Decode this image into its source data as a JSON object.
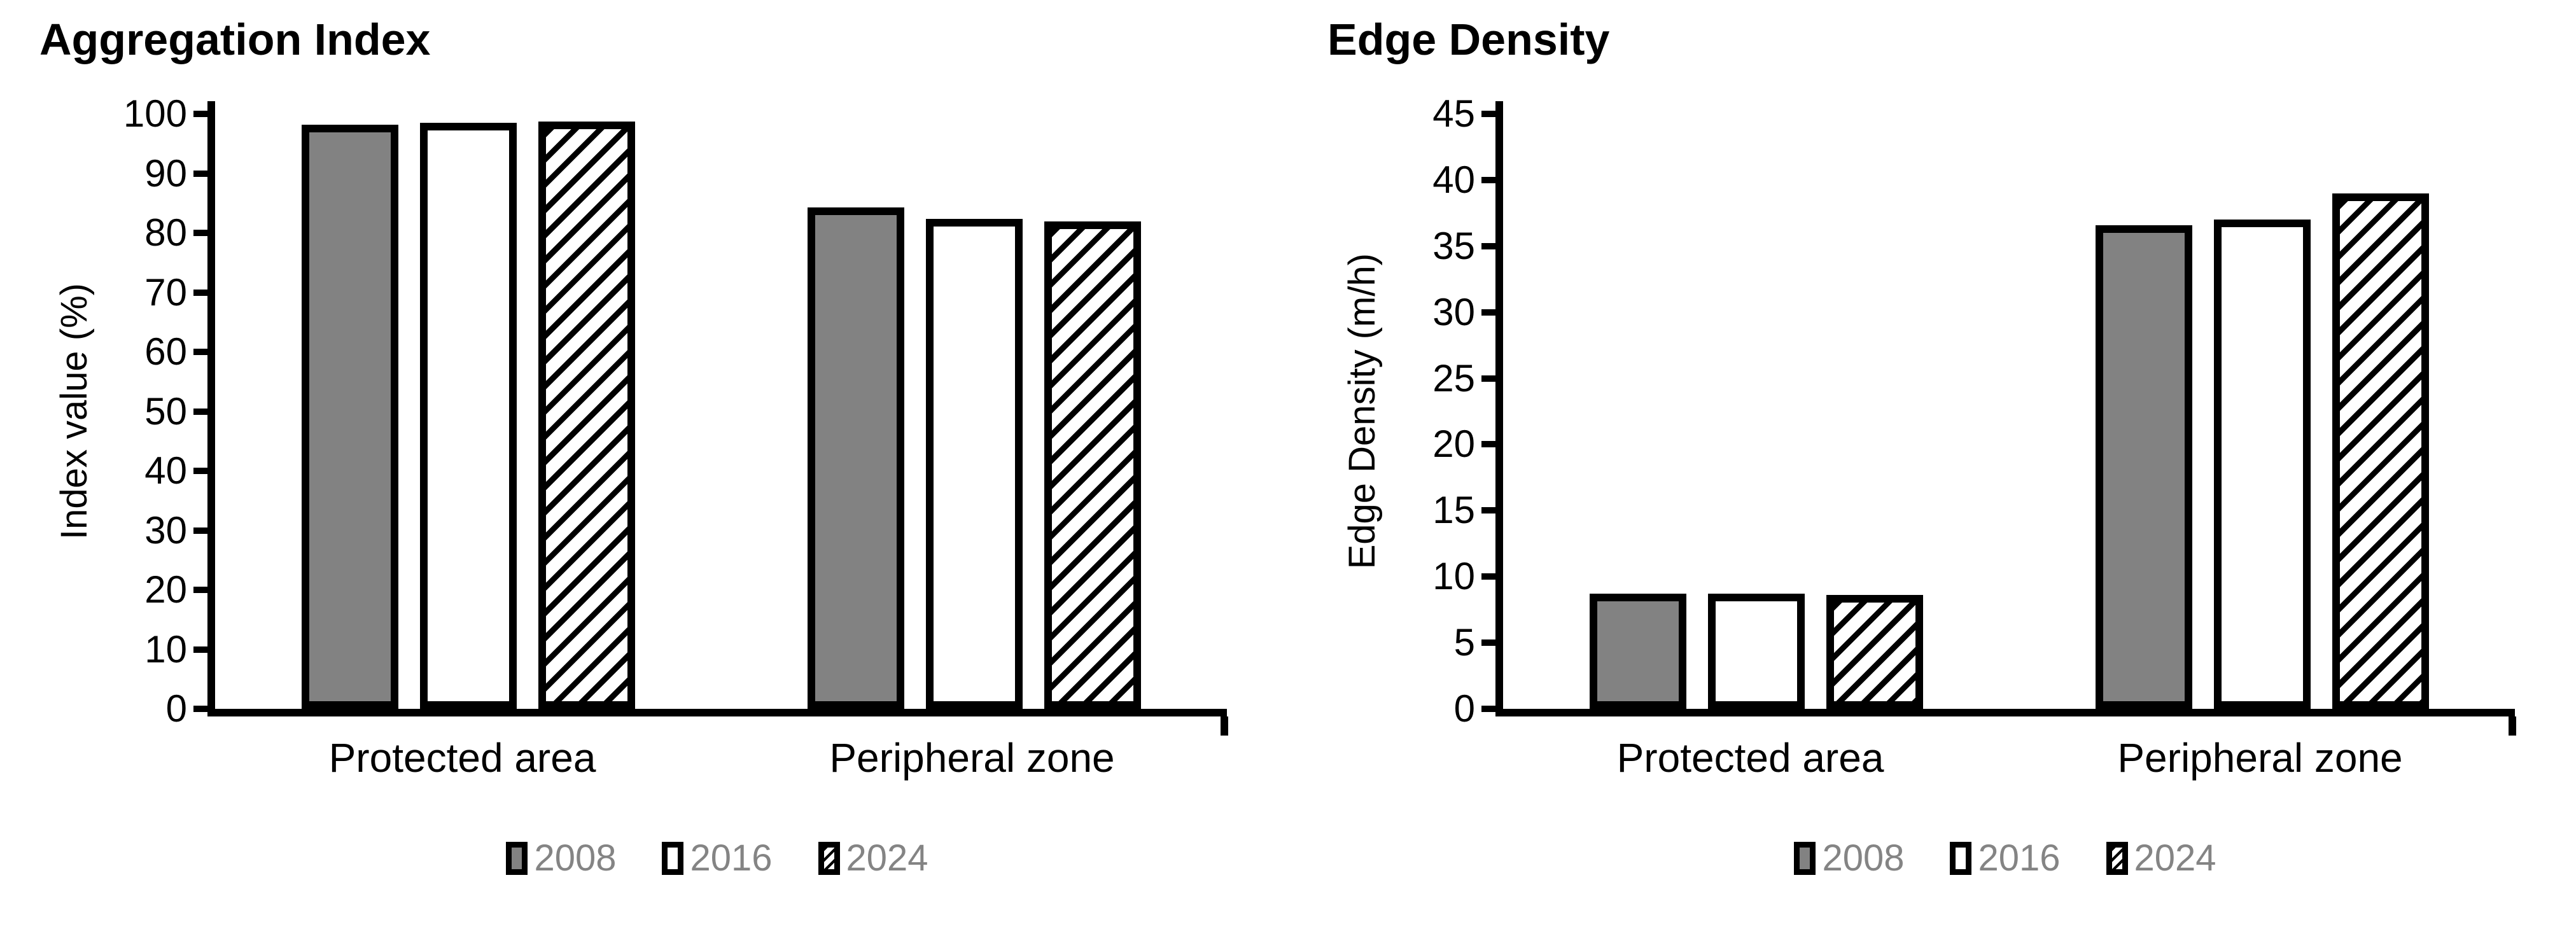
{
  "colors": {
    "bar_gray": "#828282",
    "bar_white": "#ffffff",
    "hatch_foreground": "#000000",
    "legend_text": "#848484",
    "axis": "#000000"
  },
  "legend": {
    "items": [
      {
        "label": "2008",
        "style": "gray"
      },
      {
        "label": "2016",
        "style": "white"
      },
      {
        "label": "2024",
        "style": "hatch"
      }
    ]
  },
  "chart_data": [
    {
      "type": "bar",
      "title": "Aggregation Index",
      "xlabel": "",
      "ylabel": "Index value (%)",
      "ylim": [
        0,
        100
      ],
      "yticks": [
        0,
        10,
        20,
        30,
        40,
        50,
        60,
        70,
        80,
        90,
        100
      ],
      "grid": false,
      "legend_position": "bottom",
      "categories": [
        "Protected area",
        "Peripheral zone"
      ],
      "series": [
        {
          "name": "2008",
          "style": "gray",
          "values": [
            98.2,
            84.3
          ]
        },
        {
          "name": "2016",
          "style": "white",
          "values": [
            98.5,
            82.4
          ]
        },
        {
          "name": "2024",
          "style": "hatch",
          "values": [
            98.7,
            81.9
          ]
        }
      ]
    },
    {
      "type": "bar",
      "title": "Edge Density",
      "xlabel": "",
      "ylabel": "Edge Density (m/h)",
      "ylim": [
        0,
        45
      ],
      "yticks": [
        0,
        5,
        10,
        15,
        20,
        25,
        30,
        35,
        40,
        45
      ],
      "grid": false,
      "legend_position": "bottom",
      "categories": [
        "Protected area",
        "Peripheral zone"
      ],
      "series": [
        {
          "name": "2008",
          "style": "gray",
          "values": [
            8.7,
            36.6
          ]
        },
        {
          "name": "2016",
          "style": "white",
          "values": [
            8.7,
            37.0
          ]
        },
        {
          "name": "2024",
          "style": "hatch",
          "values": [
            8.6,
            39.0
          ]
        }
      ]
    }
  ]
}
